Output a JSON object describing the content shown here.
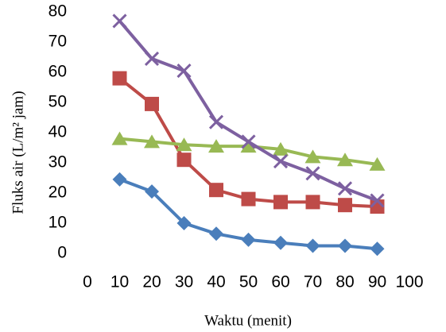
{
  "chart_data": {
    "type": "line",
    "x_label": "Waktu (menit)",
    "y_label": "Fluks air (L/m² jam)",
    "x": [
      10,
      20,
      30,
      40,
      50,
      60,
      70,
      80,
      90
    ],
    "series": [
      {
        "color": "#4a7ebb",
        "marker": "diamond",
        "values": [
          24.5,
          20.5,
          10,
          6.5,
          4.5,
          3.5,
          2.5,
          2.5,
          1.5
        ]
      },
      {
        "color": "#be4b48",
        "marker": "square",
        "values": [
          58,
          49.5,
          31,
          21,
          18,
          17,
          17,
          16,
          15.5
        ]
      },
      {
        "color": "#98b954",
        "marker": "triangle",
        "values": [
          38,
          37,
          36,
          35.5,
          35.5,
          34.5,
          32,
          31,
          29.5
        ]
      },
      {
        "color": "#7d60a0",
        "marker": "x",
        "values": [
          77,
          64.5,
          60.5,
          43.5,
          37,
          30.5,
          26.5,
          21.5,
          17.5
        ]
      }
    ],
    "xlim": [
      0,
      100
    ],
    "xticks": [
      0,
      10,
      20,
      30,
      40,
      50,
      60,
      70,
      80,
      90,
      100
    ],
    "ylim": [
      0,
      80
    ],
    "yticks": [
      0,
      10,
      20,
      30,
      40,
      50,
      60,
      70,
      80
    ],
    "grid": false
  }
}
